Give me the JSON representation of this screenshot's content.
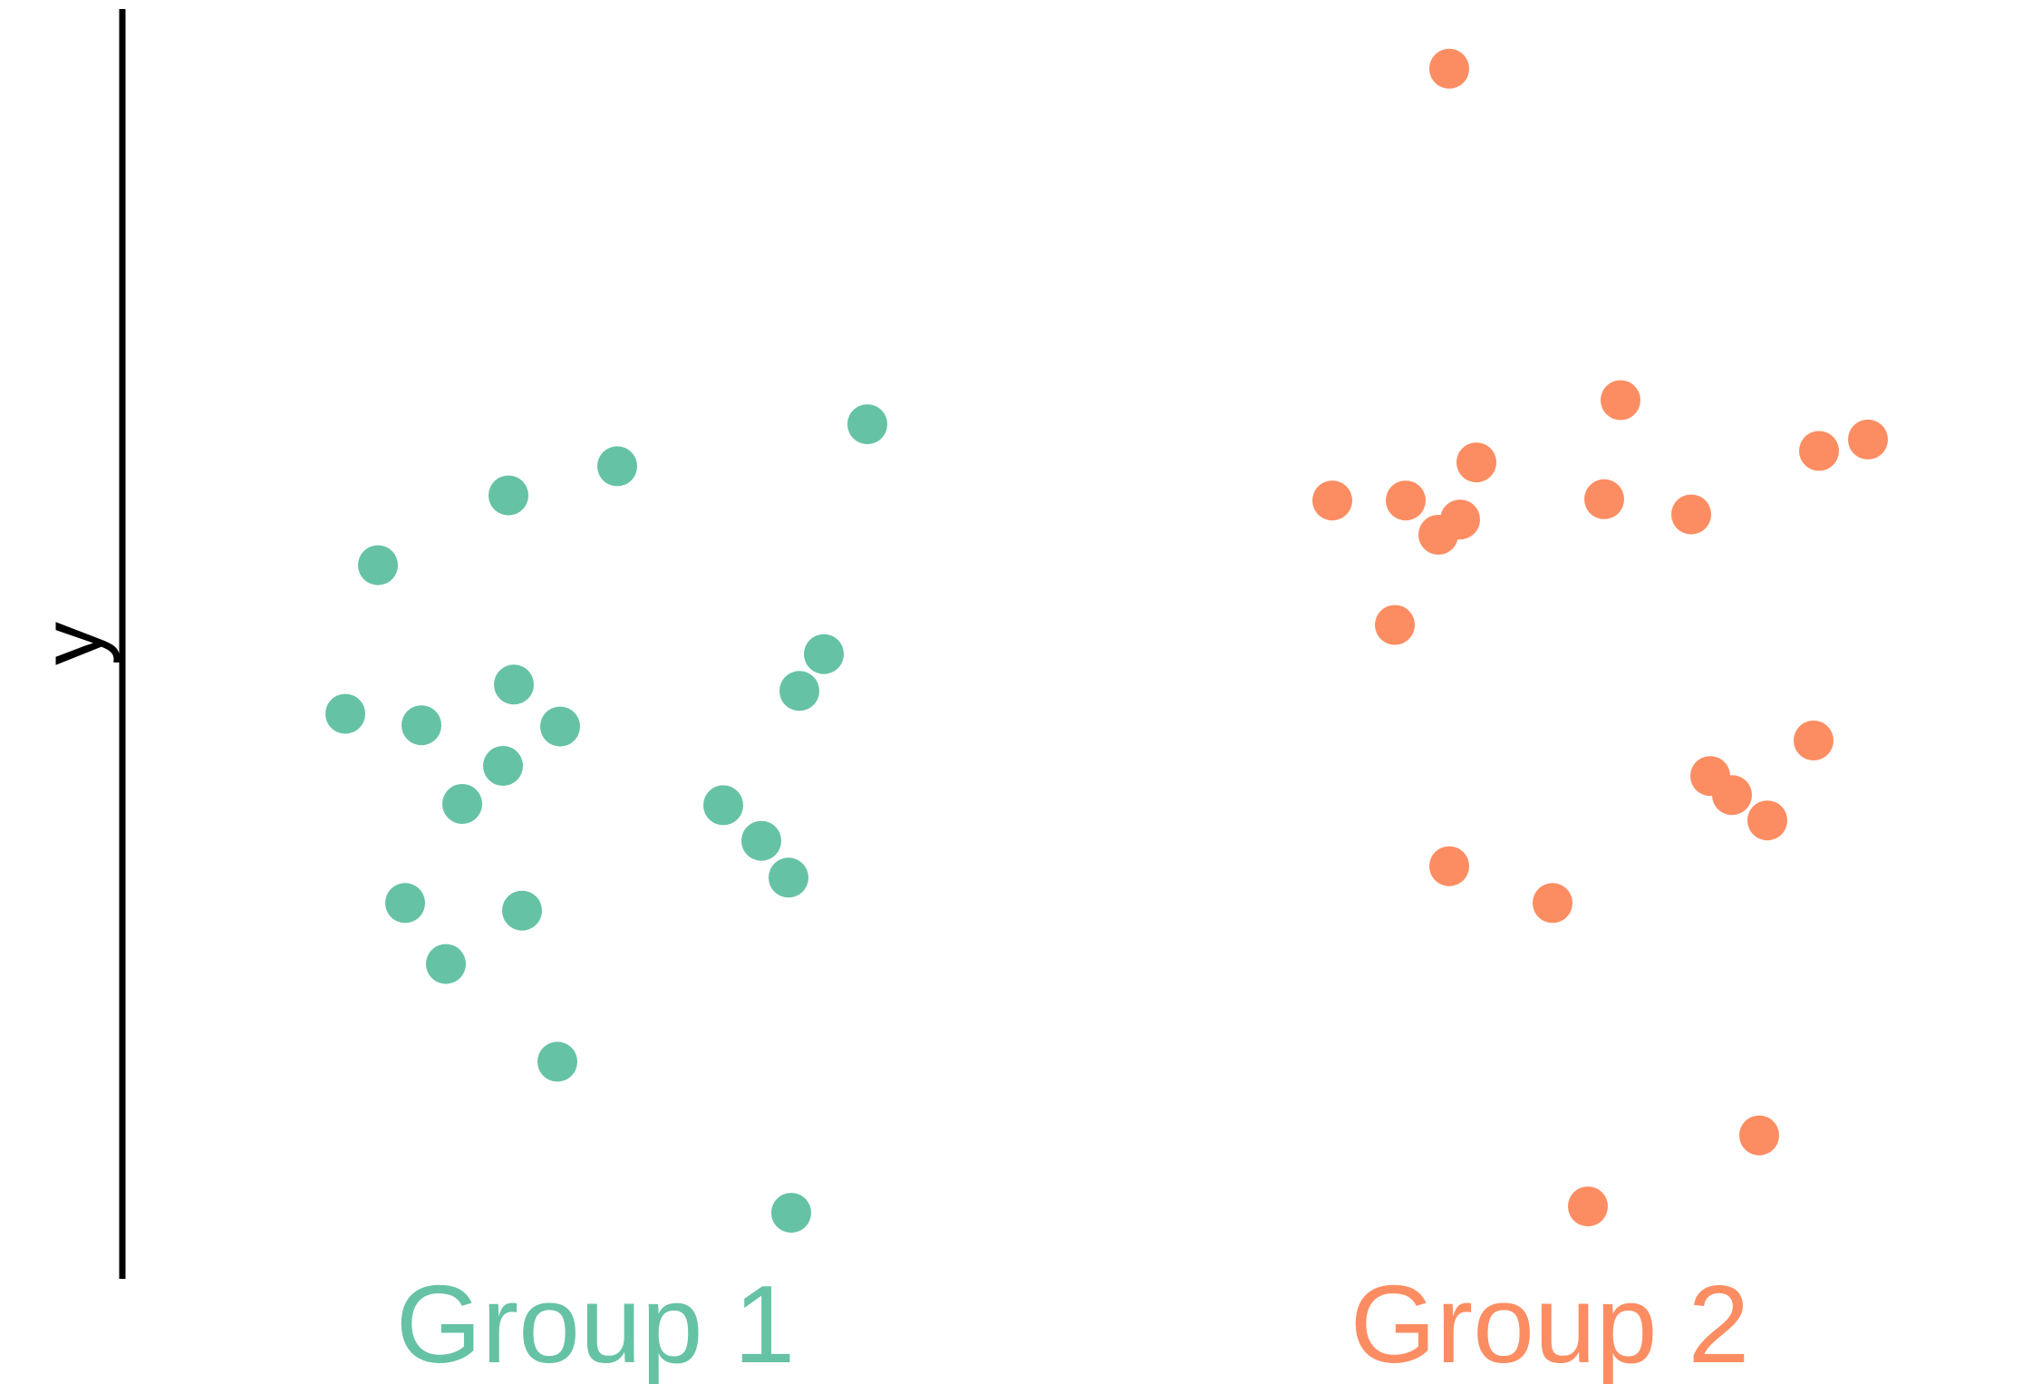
{
  "chart_data": {
    "type": "scatter",
    "title": "",
    "xlabel": "",
    "ylabel": "y",
    "categories": [
      "Group 1",
      "Group 2"
    ],
    "colors": {
      "Group 1": "#66c2a5",
      "Group 2": "#fc8d62"
    },
    "axis_color": "#000000",
    "grid": false,
    "legend": "none",
    "x_ticks_shown": false,
    "y_ticks_shown": false,
    "ylim": [
      0,
      1
    ],
    "jitter_range": [
      -1,
      1
    ],
    "points": {
      "Group 1": [
        {
          "j": -0.8,
          "y": 0.562
        },
        {
          "j": -0.92,
          "y": 0.445
        },
        {
          "j": -0.64,
          "y": 0.436
        },
        {
          "j": -0.49,
          "y": 0.374
        },
        {
          "j": -0.34,
          "y": 0.404
        },
        {
          "j": -0.3,
          "y": 0.468
        },
        {
          "j": -0.32,
          "y": 0.617
        },
        {
          "j": -0.7,
          "y": 0.296
        },
        {
          "j": -0.55,
          "y": 0.248
        },
        {
          "j": -0.27,
          "y": 0.29
        },
        {
          "j": -0.13,
          "y": 0.435
        },
        {
          "j": -0.14,
          "y": 0.171
        },
        {
          "j": 0.08,
          "y": 0.64
        },
        {
          "j": 0.47,
          "y": 0.373
        },
        {
          "j": 0.61,
          "y": 0.345
        },
        {
          "j": 0.71,
          "y": 0.316
        },
        {
          "j": 0.75,
          "y": 0.463
        },
        {
          "j": 0.84,
          "y": 0.492
        },
        {
          "j": 1.0,
          "y": 0.673
        },
        {
          "j": 0.72,
          "y": 0.052
        }
      ],
      "Group 2": [
        {
          "j": -0.8,
          "y": 0.613
        },
        {
          "j": -0.53,
          "y": 0.613
        },
        {
          "j": -0.57,
          "y": 0.515
        },
        {
          "j": -0.41,
          "y": 0.586
        },
        {
          "j": -0.33,
          "y": 0.598
        },
        {
          "j": -0.27,
          "y": 0.643
        },
        {
          "j": -0.37,
          "y": 0.953
        },
        {
          "j": -0.37,
          "y": 0.325
        },
        {
          "j": 0.01,
          "y": 0.296
        },
        {
          "j": 0.2,
          "y": 0.614
        },
        {
          "j": 0.26,
          "y": 0.692
        },
        {
          "j": 0.52,
          "y": 0.602
        },
        {
          "j": 0.59,
          "y": 0.396
        },
        {
          "j": 0.67,
          "y": 0.381
        },
        {
          "j": 0.8,
          "y": 0.361
        },
        {
          "j": 0.97,
          "y": 0.424
        },
        {
          "j": 0.99,
          "y": 0.652
        },
        {
          "j": 1.17,
          "y": 0.661
        },
        {
          "j": 0.77,
          "y": 0.113
        },
        {
          "j": 0.14,
          "y": 0.057
        }
      ]
    }
  }
}
